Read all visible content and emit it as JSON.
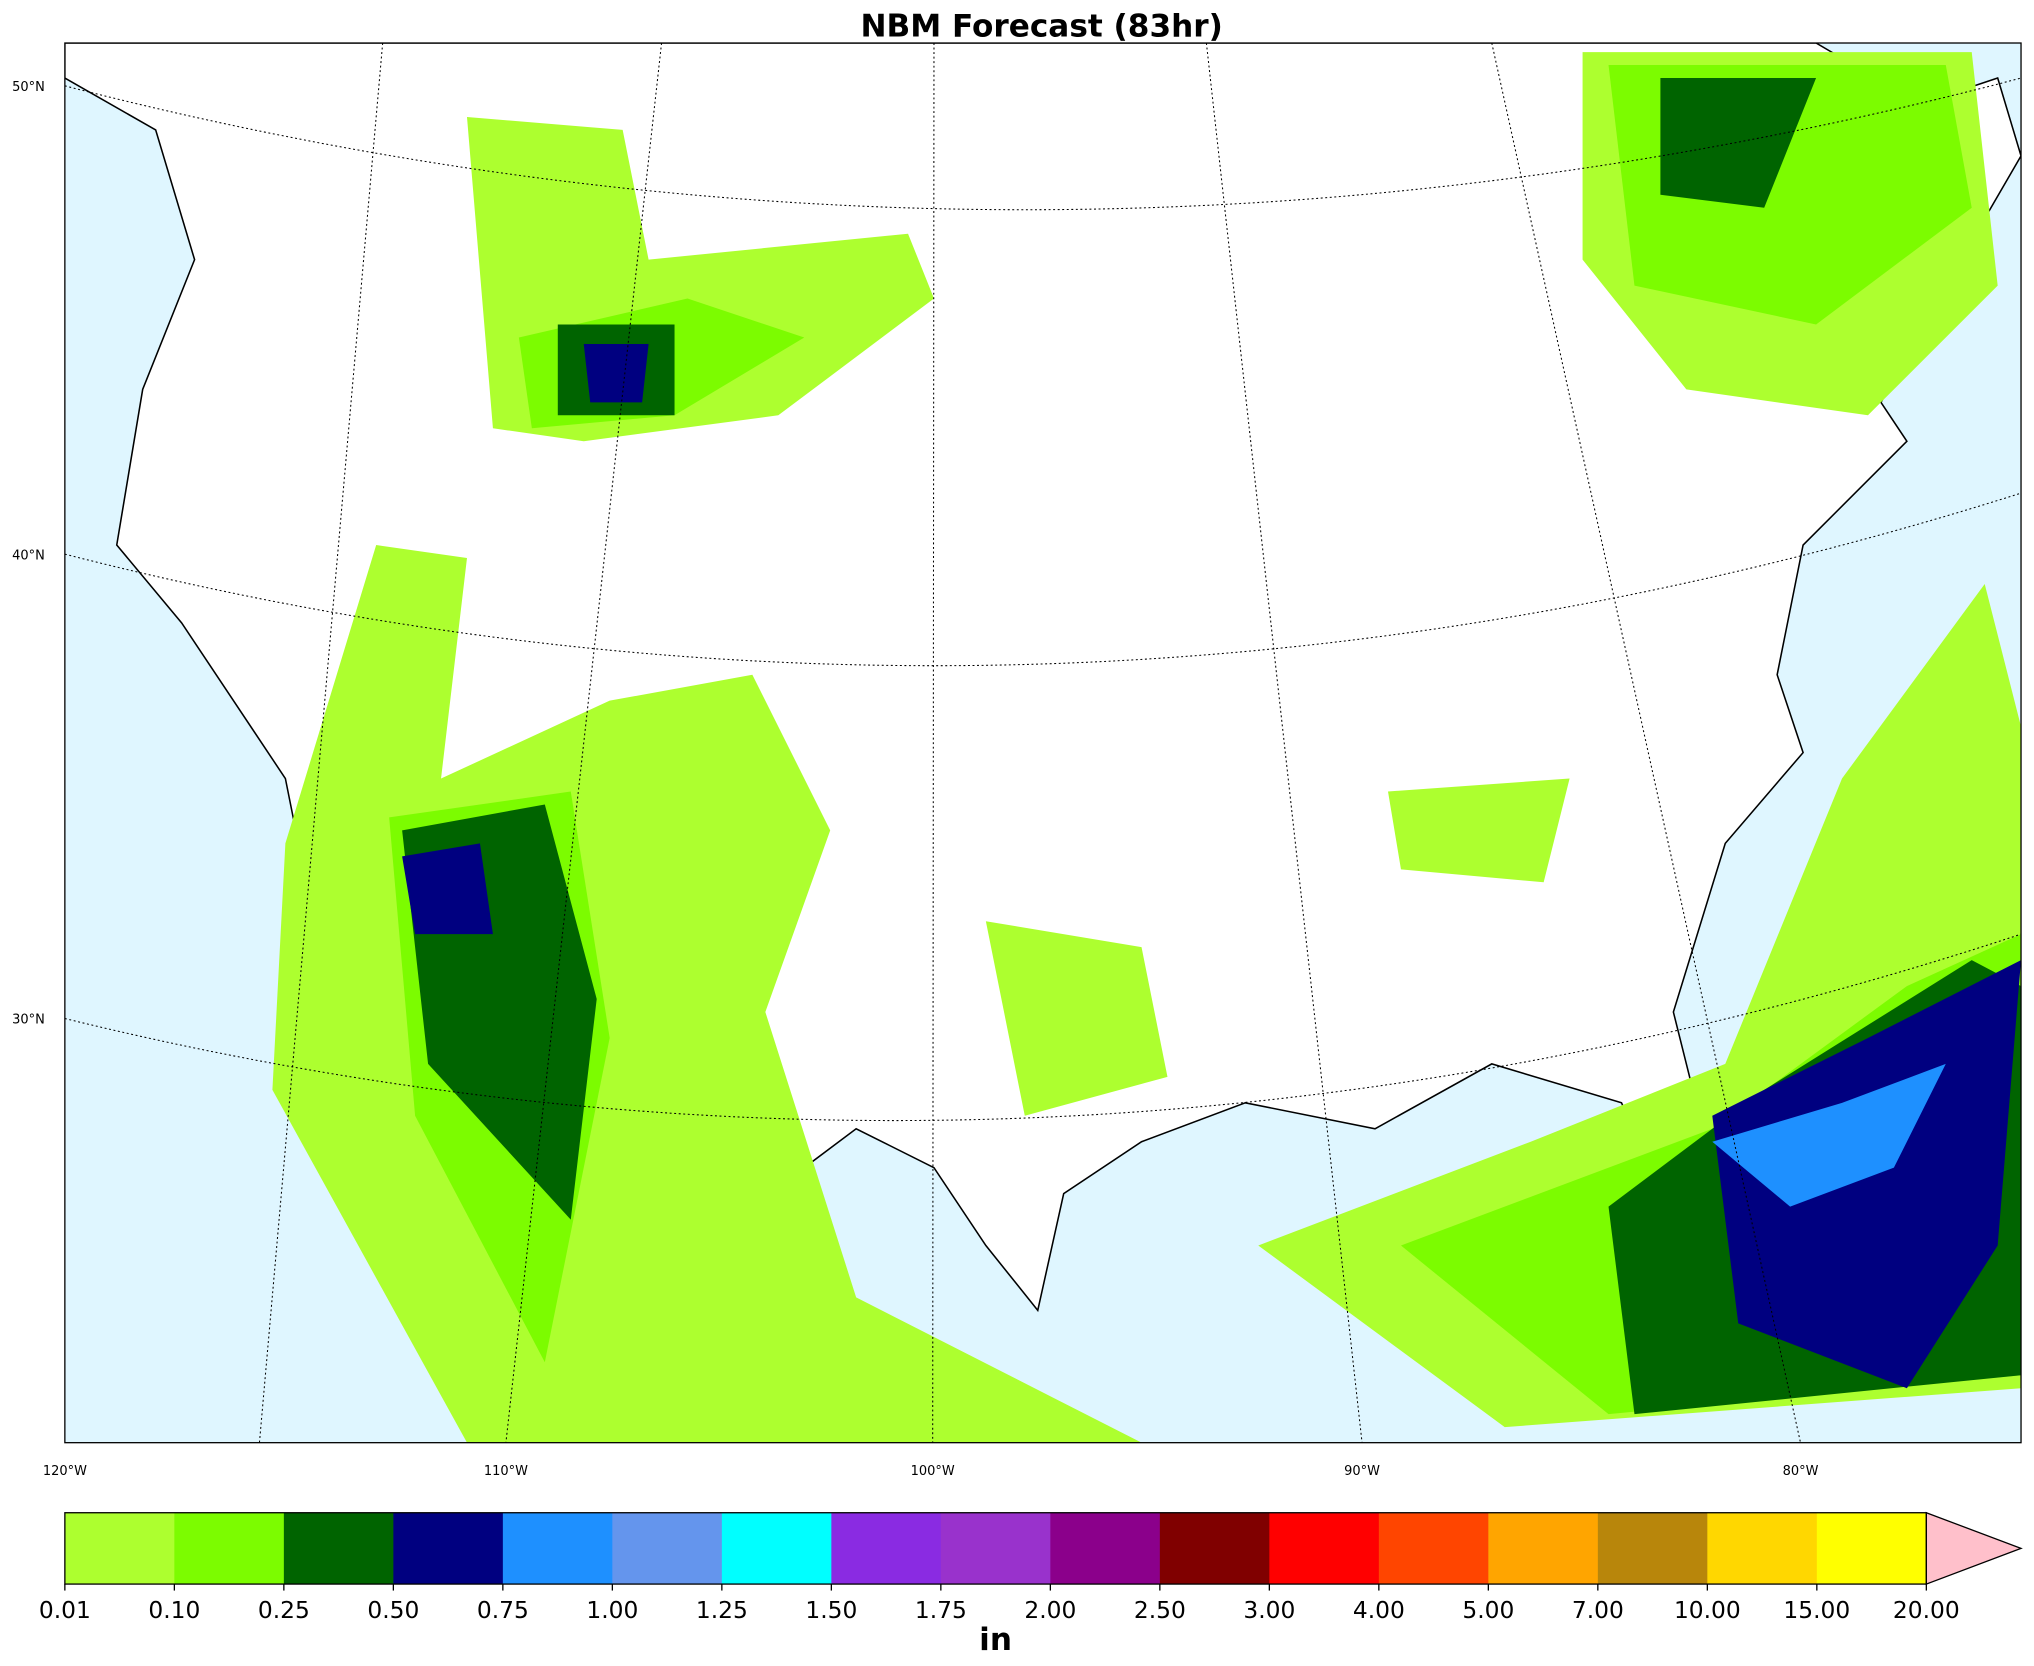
{
  "title": "NBM Forecast (83hr)",
  "map": {
    "lat_labels": [
      "50°N",
      "40°N",
      "30°N"
    ],
    "lon_labels": [
      "120°W",
      "110°W",
      "100°W",
      "90°W",
      "80°W"
    ]
  },
  "colorbar": {
    "ticks": [
      {
        "value": 0.01,
        "label": "0.01"
      },
      {
        "value": 0.1,
        "label": "0.10"
      },
      {
        "value": 0.25,
        "label": "0.25"
      },
      {
        "value": 0.5,
        "label": "0.50"
      },
      {
        "value": 0.75,
        "label": "0.75"
      },
      {
        "value": 1,
        "label": "1.00"
      },
      {
        "value": 1.25,
        "label": "1.25"
      },
      {
        "value": 1.5,
        "label": "1.50"
      },
      {
        "value": 1.75,
        "label": "1.75"
      },
      {
        "value": 2,
        "label": "2.00"
      },
      {
        "value": 2.5,
        "label": "2.50"
      },
      {
        "value": 3,
        "label": "3.00"
      },
      {
        "value": 4,
        "label": "4.00"
      },
      {
        "value": 5,
        "label": "5.00"
      },
      {
        "value": 7,
        "label": "7.00"
      },
      {
        "value": 10,
        "label": "10.00"
      },
      {
        "value": 15,
        "label": "15.00"
      },
      {
        "value": 20,
        "label": "20.00"
      }
    ],
    "colors": [
      "#adff2f",
      "#7cfc00",
      "#006400",
      "#000080",
      "#1e90ff",
      "#6495ed",
      "#00ffff",
      "#8a2be2",
      "#9932cc",
      "#8b008b",
      "#800000",
      "#ff0000",
      "#ff4500",
      "#ffa500",
      "#b8860b",
      "#ffd700",
      "#ffff00"
    ],
    "extend_color": "#ffc0cb",
    "label": "in"
  }
}
